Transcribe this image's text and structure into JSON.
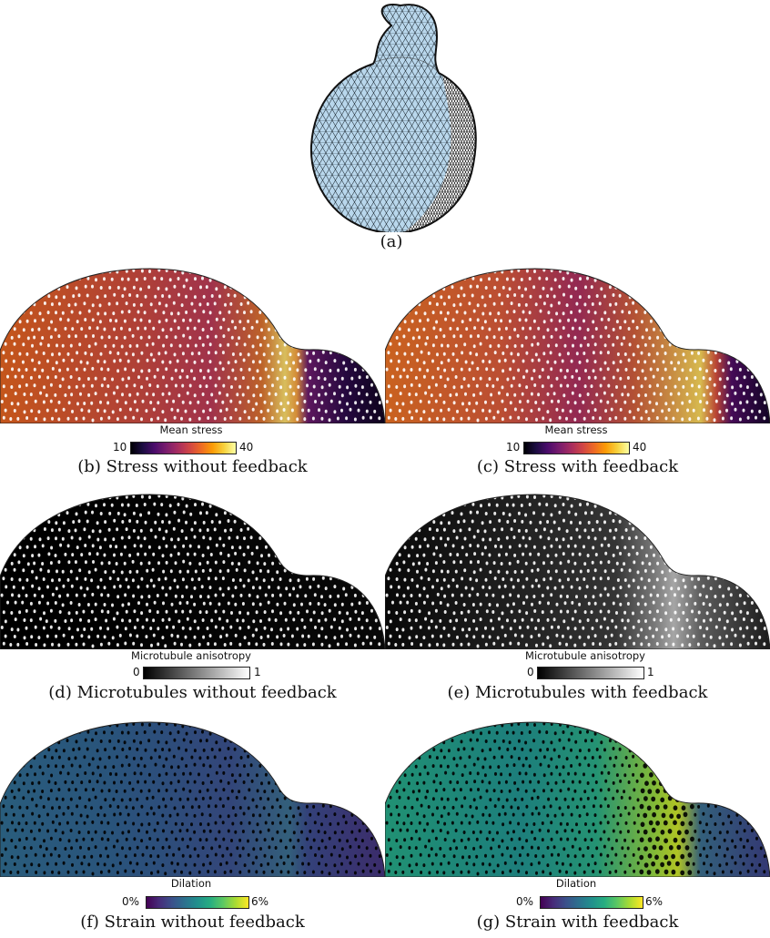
{
  "figure_a": {
    "caption": "(a)"
  },
  "panels": [
    {
      "id": "b",
      "caption": "(b) Stress without feedback",
      "colorbar": {
        "title": "Mean stress",
        "min": "10",
        "max": "40",
        "colormap": "inferno"
      }
    },
    {
      "id": "c",
      "caption": "(c) Stress with feedback",
      "colorbar": {
        "title": "Mean stress",
        "min": "10",
        "max": "40",
        "colormap": "inferno"
      }
    },
    {
      "id": "d",
      "caption": "(d) Microtubules without feedback",
      "colorbar": {
        "title": "Microtubule anisotropy",
        "min": "0",
        "max": "1",
        "colormap": "gray"
      }
    },
    {
      "id": "e",
      "caption": "(e) Microtubules with feedback",
      "colorbar": {
        "title": "Microtubule anisotropy",
        "min": "0",
        "max": "1",
        "colormap": "gray"
      }
    },
    {
      "id": "f",
      "caption": "(f) Strain without feedback",
      "colorbar": {
        "title": "Dilation",
        "min": "0%",
        "max": "6%",
        "colormap": "viridis"
      }
    },
    {
      "id": "g",
      "caption": "(g) Strain with feedback",
      "colorbar": {
        "title": "Dilation",
        "min": "0%",
        "max": "6%",
        "colormap": "viridis"
      }
    }
  ],
  "colors": {
    "mesh_fill": "#b9d7ec",
    "mesh_line": "#1a1a1a",
    "background": "#ffffff"
  }
}
